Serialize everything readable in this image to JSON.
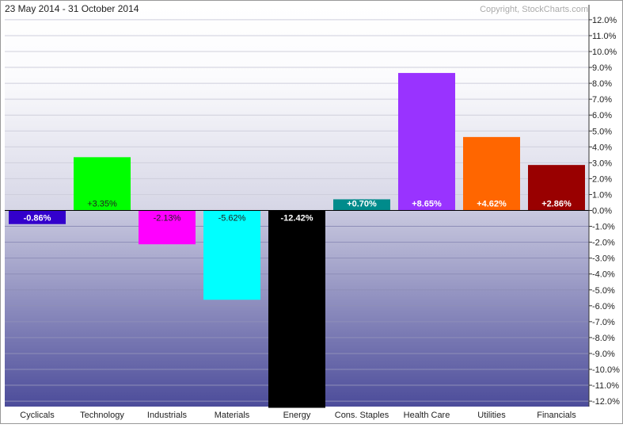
{
  "header": {
    "date_range": "23 May 2014 - 31 October 2014",
    "copyright": "Copyright, StockCharts.com"
  },
  "chart_data": {
    "type": "bar",
    "title": "",
    "xlabel": "",
    "ylabel": "",
    "ylim": [
      -12.5,
      12.5
    ],
    "y_ticks": [
      12,
      11,
      10,
      9,
      8,
      7,
      6,
      5,
      4,
      3,
      2,
      1,
      0,
      -1,
      -2,
      -3,
      -4,
      -5,
      -6,
      -7,
      -8,
      -9,
      -10,
      -11,
      -12
    ],
    "y_tick_labels": [
      "12.0%",
      "11.0%",
      "10.0%",
      "9.0%",
      "8.0%",
      "7.0%",
      "6.0%",
      "5.0%",
      "4.0%",
      "3.0%",
      "2.0%",
      "1.0%",
      "0.0%",
      "-1.0%",
      "-2.0%",
      "-3.0%",
      "-4.0%",
      "-5.0%",
      "-6.0%",
      "-7.0%",
      "-8.0%",
      "-9.0%",
      "-10.0%",
      "-11.0%",
      "-12.0%"
    ],
    "grid": true,
    "categories": [
      "Cyclicals",
      "Technology",
      "Industrials",
      "Materials",
      "Energy",
      "Cons. Staples",
      "Health Care",
      "Utilities",
      "Financials"
    ],
    "values": [
      -0.86,
      3.35,
      -2.13,
      -5.62,
      -12.42,
      0.7,
      8.65,
      4.62,
      2.86
    ],
    "value_labels": [
      "-0.86%",
      "+3.35%",
      "-2.13%",
      "-5.62%",
      "-12.42%",
      "+0.70%",
      "+8.65%",
      "+4.62%",
      "+2.86%"
    ],
    "bar_colors": [
      "#3300cc",
      "#00ff00",
      "#ff00ff",
      "#00ffff",
      "#000000",
      "#008b8b",
      "#9933ff",
      "#ff6600",
      "#990000"
    ],
    "label_colors": [
      "#ffffff",
      "#222222",
      "#222222",
      "#222222",
      "#ffffff",
      "#ffffff",
      "#ffffff",
      "#ffffff",
      "#ffffff"
    ]
  }
}
